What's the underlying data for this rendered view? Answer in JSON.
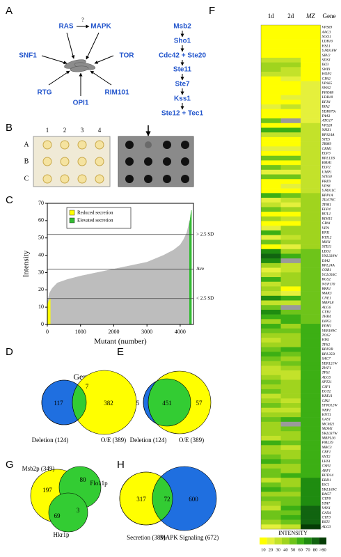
{
  "panel_labels": [
    "A",
    "B",
    "C",
    "D",
    "E",
    "F",
    "G",
    "H"
  ],
  "diagram": {
    "top": {
      "left": "RAS",
      "right": "MAPK",
      "question": "?"
    },
    "inputs": [
      "SNF1",
      "TOR",
      "RTG",
      "RIM101",
      "OPI1"
    ],
    "pathway": [
      "Msb2",
      "Sho1",
      "Cdc42 + Ste20",
      "Ste11",
      "Ste7",
      "Kss1",
      "Ste12 + Tec1"
    ]
  },
  "plate": {
    "columns": [
      1,
      2,
      3,
      4
    ],
    "rows": [
      "A",
      "B",
      "C"
    ]
  },
  "chart_data": [
    {
      "type": "area",
      "y_label": "Intensity",
      "x_label": "Mutant (number)",
      "xlim": [
        0,
        4400
      ],
      "xticks": [
        0,
        1000,
        2000,
        3000,
        4000
      ],
      "ylim": [
        0,
        70
      ],
      "yticks": [
        0,
        10,
        20,
        30,
        40,
        50,
        60,
        70
      ],
      "series": [
        {
          "color": "#bdbdbd",
          "x": [
            0,
            60,
            150,
            300,
            600,
            1000,
            1500,
            2000,
            2500,
            3000,
            3500,
            3800,
            4000,
            4100,
            4200,
            4250,
            4280
          ],
          "values": [
            12,
            18,
            21,
            24,
            26,
            28,
            30,
            32,
            34,
            36,
            40,
            43,
            46,
            49,
            53,
            57,
            60
          ]
        },
        {
          "name": "Reduced secretion",
          "color": "#ffff00",
          "x": [
            0,
            30,
            60,
            90
          ],
          "values": [
            10,
            13,
            14,
            15
          ]
        },
        {
          "name": "Elevated secretion",
          "color": "#33bb33",
          "x": [
            4280,
            4300,
            4320,
            4340
          ],
          "values": [
            58,
            61,
            64,
            66
          ]
        }
      ],
      "reference_lines": [
        {
          "value": 52,
          "label": "> 2.5 SD"
        },
        {
          "value": 32,
          "label": "Ave"
        },
        {
          "value": 15,
          "label": "< 2.5 SD"
        }
      ]
    },
    {
      "type": "venn",
      "title": "Gene",
      "sets": [
        "Deletion (124)",
        "O/E (389)"
      ],
      "colors": [
        "#1f6fe0",
        "#ffff00"
      ],
      "overlap_color": "#33cc33",
      "regions": [
        117,
        7,
        382
      ]
    },
    {
      "type": "venn",
      "title": "Process",
      "sets": [
        "Deletion (124)",
        "O/E (389)"
      ],
      "colors": [
        "#1f6fe0",
        "#ffff00"
      ],
      "overlap_color": "#33cc33",
      "regions": [
        5,
        451,
        57
      ]
    },
    {
      "type": "venn",
      "sets": [
        "Msb2p (349)",
        "Flo11p",
        "Hkr1p"
      ],
      "colors": [
        "#ffff00",
        "#33cc33",
        "#33cc33"
      ],
      "regions": [
        197,
        80,
        69,
        3
      ]
    },
    {
      "type": "venn",
      "sets": [
        "Secretion (389)",
        "MAPK Signaling (672)"
      ],
      "colors": [
        "#ffff00",
        "#1f6fe0"
      ],
      "overlap_color": "#33cc33",
      "regions": [
        317,
        72,
        600
      ]
    },
    {
      "type": "heatmap",
      "x": [
        "1d",
        "2d",
        "MZ"
      ],
      "y_label": "Gene",
      "colorbar_title": "INTENSITY",
      "colorbar_ticks": [
        10,
        20,
        30,
        40,
        50,
        60,
        70,
        80,
        {
          "value": 90,
          "label": ">80"
        }
      ],
      "colors": [
        "#ffff00",
        "#e5f03c",
        "#c3e22a",
        "#a0d41e",
        "#6ec41a",
        "#3caf14",
        "#1f8c10",
        "#116410",
        "#053c05"
      ],
      "missing_color": "#9a9a9a",
      "y": [
        "VPS69",
        "AAC3",
        "SGO1",
        "LDB16",
        "HSL1",
        "YJR018W",
        "SBV2",
        "SDS3",
        "IKI3",
        "SWI9",
        "HOP2",
        "GPA2",
        "VPS65",
        "SWA2",
        "PHO88",
        "LDB18",
        "BFR1",
        "IRA2",
        "YDR079c",
        "FAA3",
        "ATG17",
        "VPS28",
        "NHX1",
        "RPS24A",
        "STE5",
        "TRM9",
        "CRM1",
        "ELP3",
        "RPL13B",
        "BMH1",
        "ELP2",
        "UMP1",
        "STE50",
        "PRE9",
        "VPS8",
        "YJR011C",
        "RPP1A",
        "TIL079C",
        "TPM1",
        "ELP4",
        "RUL1",
        "RIM15",
        "GPA1",
        "VIP1",
        "BNI1",
        "KTI12",
        "MNI1",
        "STE11",
        "LEO1",
        "YNL339W",
        "DIA2",
        "RPL24A",
        "COR1",
        "YCL056C",
        "RGS2",
        "NUP170",
        "RRK1",
        "MAK3",
        "CNE1",
        "MRPL8",
        "ALG6",
        "GYR1",
        "THR4",
        "INP51",
        "PPM1",
        "YER189C",
        "TOS2",
        "HIS1",
        "TPS2",
        "RPP2B",
        "RPL35B",
        "SAC7",
        "YER121W",
        "ZWF1",
        "TPS1",
        "ALG5",
        "SPT21",
        "CSF1",
        "EGT2",
        "KRE11",
        "CIK1",
        "YFR012W",
        "NRP1",
        "HNT1",
        "GAS1",
        "MCM21",
        "MDM1",
        "YKL037W",
        "MRPL36",
        "PML39",
        "MBC3",
        "CBF1",
        "SNT2",
        "LHS1",
        "CSH1",
        "ARF1",
        "BUD14",
        "ERD1",
        "ISC1",
        "YKL169C",
        "BAG7",
        "CTF8",
        "YTA7",
        "VAN1",
        "CAX4",
        "CTF3",
        "BST1",
        "ALG3"
      ],
      "values": [
        [
          10,
          10,
          10
        ],
        [
          10,
          10,
          10
        ],
        [
          10,
          10,
          10
        ],
        [
          10,
          10,
          10
        ],
        [
          10,
          10,
          10
        ],
        [
          10,
          15,
          10
        ],
        [
          10,
          10,
          12
        ],
        [
          30,
          35,
          15
        ],
        [
          40,
          45,
          15
        ],
        [
          45,
          30,
          15
        ],
        [
          30,
          35,
          15
        ],
        [
          15,
          20,
          18
        ],
        [
          10,
          12,
          20
        ],
        [
          10,
          10,
          20
        ],
        [
          10,
          12,
          20
        ],
        [
          15,
          25,
          22
        ],
        [
          10,
          10,
          22
        ],
        [
          25,
          30,
          24
        ],
        [
          10,
          10,
          25
        ],
        [
          10,
          10,
          25
        ],
        [
          55,
          null,
          28
        ],
        [
          10,
          12,
          30
        ],
        [
          60,
          65,
          30
        ],
        [
          35,
          30,
          30
        ],
        [
          10,
          10,
          32
        ],
        [
          10,
          15,
          32
        ],
        [
          25,
          20,
          33
        ],
        [
          10,
          10,
          33
        ],
        [
          55,
          50,
          34
        ],
        [
          10,
          15,
          35
        ],
        [
          55,
          45,
          35
        ],
        [
          20,
          20,
          35
        ],
        [
          50,
          55,
          36
        ],
        [
          10,
          10,
          37
        ],
        [
          15,
          25,
          38
        ],
        [
          15,
          10,
          38
        ],
        [
          60,
          55,
          40
        ],
        [
          20,
          30,
          40
        ],
        [
          30,
          20,
          40
        ],
        [
          55,
          40,
          42
        ],
        [
          10,
          15,
          42
        ],
        [
          40,
          30,
          42
        ],
        [
          10,
          15,
          42
        ],
        [
          20,
          40,
          44
        ],
        [
          60,
          40,
          45
        ],
        [
          20,
          30,
          45
        ],
        [
          50,
          45,
          45
        ],
        [
          15,
          25,
          46
        ],
        [
          70,
          45,
          55
        ],
        [
          80,
          60,
          55
        ],
        [
          70,
          null,
          55
        ],
        [
          40,
          30,
          55
        ],
        [
          25,
          30,
          55
        ],
        [
          30,
          40,
          55
        ],
        [
          60,
          40,
          55
        ],
        [
          35,
          45,
          56
        ],
        [
          45,
          10,
          56
        ],
        [
          30,
          25,
          57
        ],
        [
          75,
          60,
          57
        ],
        [
          35,
          35,
          58
        ],
        [
          50,
          null,
          58
        ],
        [
          70,
          50,
          58
        ],
        [
          65,
          60,
          58
        ],
        [
          40,
          60,
          59
        ],
        [
          60,
          40,
          60
        ],
        [
          50,
          55,
          60
        ],
        [
          40,
          40,
          60
        ],
        [
          30,
          45,
          60
        ],
        [
          45,
          40,
          60
        ],
        [
          55,
          60,
          60
        ],
        [
          60,
          55,
          60
        ],
        [
          50,
          45,
          61
        ],
        [
          40,
          50,
          61
        ],
        [
          35,
          45,
          61
        ],
        [
          30,
          35,
          62
        ],
        [
          45,
          30,
          62
        ],
        [
          50,
          40,
          62
        ],
        [
          40,
          45,
          62
        ],
        [
          50,
          45,
          63
        ],
        [
          30,
          40,
          63
        ],
        [
          40,
          30,
          63
        ],
        [
          50,
          40,
          64
        ],
        [
          35,
          30,
          64
        ],
        [
          40,
          45,
          64
        ],
        [
          55,
          60,
          65
        ],
        [
          45,
          null,
          65
        ],
        [
          40,
          50,
          65
        ],
        [
          45,
          40,
          66
        ],
        [
          30,
          45,
          66
        ],
        [
          65,
          50,
          66
        ],
        [
          40,
          35,
          67
        ],
        [
          45,
          40,
          67
        ],
        [
          55,
          45,
          67
        ],
        [
          60,
          50,
          68
        ],
        [
          45,
          40,
          68
        ],
        [
          50,
          45,
          68
        ],
        [
          55,
          60,
          69
        ],
        [
          30,
          40,
          70
        ],
        [
          50,
          45,
          72
        ],
        [
          60,
          50,
          74
        ],
        [
          45,
          40,
          75
        ],
        [
          50,
          55,
          76
        ],
        [
          40,
          50,
          78
        ],
        [
          35,
          60,
          80
        ],
        [
          55,
          50,
          82
        ],
        [
          50,
          60,
          85
        ],
        [
          40,
          55,
          88
        ],
        [
          25,
          30,
          90
        ]
      ]
    }
  ]
}
